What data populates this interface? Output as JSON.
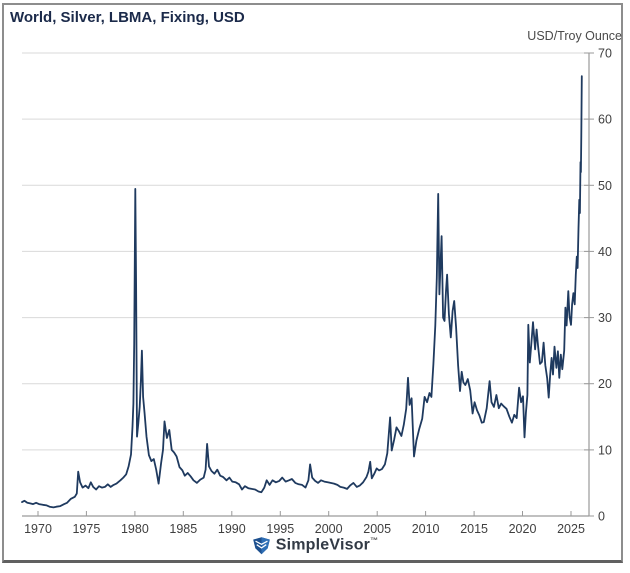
{
  "header": {
    "title": "World, Silver, LBMA, Fixing, USD",
    "unit_label": "USD/Troy Ounce"
  },
  "footer": {
    "brand": "SimpleVisor",
    "trademark": "™"
  },
  "colors": {
    "line": "#1f3a5f",
    "grid": "#d9d9d9",
    "axis": "#9a9a9a",
    "tick_text": "#3f3f3f",
    "title_text": "#1b2a4a",
    "logo_shield_dark": "#1c4f8e",
    "logo_shield_light": "#2f6fb5"
  },
  "chart_data": {
    "type": "line",
    "title": "World, Silver, LBMA, Fixing, USD",
    "xlabel": "",
    "ylabel": "USD/Troy Ounce",
    "xlim": [
      1968.35,
      2026.86
    ],
    "ylim": [
      0,
      70
    ],
    "x_ticks": [
      1970,
      1975,
      1980,
      1985,
      1990,
      1995,
      2000,
      2005,
      2010,
      2015,
      2020,
      2025
    ],
    "y_ticks": [
      0,
      10,
      20,
      30,
      40,
      50,
      60,
      70
    ],
    "grid": "horizontal-only",
    "legend": "none",
    "series": [
      {
        "name": "Silver LBMA Fixing (USD/Troy Ounce)",
        "points": [
          [
            1968.35,
            2.1
          ],
          [
            1968.6,
            2.3
          ],
          [
            1968.9,
            2.0
          ],
          [
            1969.2,
            1.9
          ],
          [
            1969.5,
            1.8
          ],
          [
            1969.8,
            2.0
          ],
          [
            1970.1,
            1.8
          ],
          [
            1970.5,
            1.7
          ],
          [
            1970.9,
            1.6
          ],
          [
            1971.2,
            1.4
          ],
          [
            1971.6,
            1.3
          ],
          [
            1971.9,
            1.4
          ],
          [
            1972.3,
            1.5
          ],
          [
            1972.7,
            1.8
          ],
          [
            1973.0,
            2.0
          ],
          [
            1973.4,
            2.6
          ],
          [
            1973.8,
            2.9
          ],
          [
            1974.0,
            3.4
          ],
          [
            1974.15,
            6.7
          ],
          [
            1974.35,
            5.1
          ],
          [
            1974.6,
            4.3
          ],
          [
            1974.9,
            4.6
          ],
          [
            1975.2,
            4.2
          ],
          [
            1975.45,
            5.1
          ],
          [
            1975.7,
            4.4
          ],
          [
            1976.0,
            4.0
          ],
          [
            1976.3,
            4.5
          ],
          [
            1976.6,
            4.3
          ],
          [
            1976.9,
            4.4
          ],
          [
            1977.2,
            4.8
          ],
          [
            1977.5,
            4.4
          ],
          [
            1977.8,
            4.7
          ],
          [
            1978.1,
            4.9
          ],
          [
            1978.5,
            5.4
          ],
          [
            1978.8,
            5.8
          ],
          [
            1979.1,
            6.3
          ],
          [
            1979.35,
            7.5
          ],
          [
            1979.6,
            9.3
          ],
          [
            1979.75,
            13.5
          ],
          [
            1979.85,
            17.0
          ],
          [
            1979.93,
            26.0
          ],
          [
            1980.04,
            49.45
          ],
          [
            1980.12,
            35.0
          ],
          [
            1980.22,
            12.0
          ],
          [
            1980.35,
            14.0
          ],
          [
            1980.5,
            16.5
          ],
          [
            1980.62,
            20.5
          ],
          [
            1980.72,
            25.0
          ],
          [
            1980.85,
            18.0
          ],
          [
            1981.0,
            15.5
          ],
          [
            1981.2,
            12.0
          ],
          [
            1981.45,
            9.2
          ],
          [
            1981.7,
            8.3
          ],
          [
            1981.95,
            8.6
          ],
          [
            1982.2,
            7.0
          ],
          [
            1982.45,
            4.9
          ],
          [
            1982.7,
            8.0
          ],
          [
            1982.9,
            10.0
          ],
          [
            1983.05,
            14.3
          ],
          [
            1983.3,
            11.8
          ],
          [
            1983.55,
            13.0
          ],
          [
            1983.8,
            10.0
          ],
          [
            1984.05,
            9.6
          ],
          [
            1984.3,
            9.0
          ],
          [
            1984.6,
            7.4
          ],
          [
            1984.9,
            6.9
          ],
          [
            1985.15,
            6.1
          ],
          [
            1985.45,
            6.5
          ],
          [
            1985.75,
            6.0
          ],
          [
            1986.05,
            5.4
          ],
          [
            1986.4,
            5.0
          ],
          [
            1986.75,
            5.5
          ],
          [
            1987.1,
            5.8
          ],
          [
            1987.3,
            7.0
          ],
          [
            1987.45,
            10.9
          ],
          [
            1987.65,
            7.5
          ],
          [
            1987.9,
            6.8
          ],
          [
            1988.2,
            6.4
          ],
          [
            1988.5,
            7.0
          ],
          [
            1988.8,
            6.1
          ],
          [
            1989.1,
            5.9
          ],
          [
            1989.45,
            5.4
          ],
          [
            1989.75,
            5.8
          ],
          [
            1990.05,
            5.2
          ],
          [
            1990.4,
            5.1
          ],
          [
            1990.75,
            4.8
          ],
          [
            1991.05,
            4.0
          ],
          [
            1991.35,
            4.5
          ],
          [
            1991.7,
            4.2
          ],
          [
            1992.05,
            4.1
          ],
          [
            1992.4,
            4.0
          ],
          [
            1992.75,
            3.7
          ],
          [
            1993.05,
            3.6
          ],
          [
            1993.35,
            4.3
          ],
          [
            1993.6,
            5.4
          ],
          [
            1993.9,
            4.7
          ],
          [
            1994.2,
            5.4
          ],
          [
            1994.55,
            5.1
          ],
          [
            1994.9,
            5.3
          ],
          [
            1995.2,
            5.8
          ],
          [
            1995.55,
            5.2
          ],
          [
            1995.9,
            5.4
          ],
          [
            1996.2,
            5.6
          ],
          [
            1996.55,
            5.0
          ],
          [
            1996.9,
            4.8
          ],
          [
            1997.25,
            4.7
          ],
          [
            1997.6,
            4.3
          ],
          [
            1997.9,
            5.4
          ],
          [
            1998.08,
            7.8
          ],
          [
            1998.3,
            5.8
          ],
          [
            1998.6,
            5.3
          ],
          [
            1998.9,
            5.0
          ],
          [
            1999.2,
            5.4
          ],
          [
            1999.55,
            5.2
          ],
          [
            1999.9,
            5.1
          ],
          [
            2000.2,
            5.0
          ],
          [
            2000.55,
            4.9
          ],
          [
            2000.9,
            4.7
          ],
          [
            2001.2,
            4.4
          ],
          [
            2001.55,
            4.3
          ],
          [
            2001.9,
            4.1
          ],
          [
            2002.2,
            4.6
          ],
          [
            2002.55,
            5.0
          ],
          [
            2002.9,
            4.4
          ],
          [
            2003.2,
            4.6
          ],
          [
            2003.55,
            5.1
          ],
          [
            2003.9,
            5.9
          ],
          [
            2004.1,
            6.7
          ],
          [
            2004.28,
            8.2
          ],
          [
            2004.45,
            5.7
          ],
          [
            2004.7,
            6.4
          ],
          [
            2004.95,
            7.2
          ],
          [
            2005.2,
            6.9
          ],
          [
            2005.5,
            7.1
          ],
          [
            2005.8,
            7.8
          ],
          [
            2006.05,
            9.5
          ],
          [
            2006.33,
            14.9
          ],
          [
            2006.5,
            9.9
          ],
          [
            2006.75,
            11.5
          ],
          [
            2007.0,
            13.4
          ],
          [
            2007.25,
            12.8
          ],
          [
            2007.5,
            12.1
          ],
          [
            2007.75,
            13.8
          ],
          [
            2008.0,
            16.2
          ],
          [
            2008.18,
            20.9
          ],
          [
            2008.35,
            16.8
          ],
          [
            2008.55,
            17.8
          ],
          [
            2008.8,
            9.0
          ],
          [
            2009.05,
            11.4
          ],
          [
            2009.35,
            13.2
          ],
          [
            2009.65,
            14.7
          ],
          [
            2009.9,
            18.0
          ],
          [
            2010.15,
            17.2
          ],
          [
            2010.4,
            18.6
          ],
          [
            2010.6,
            18.0
          ],
          [
            2010.8,
            23.0
          ],
          [
            2011.0,
            28.8
          ],
          [
            2011.15,
            36.0
          ],
          [
            2011.3,
            48.7
          ],
          [
            2011.42,
            33.5
          ],
          [
            2011.55,
            38.3
          ],
          [
            2011.65,
            42.3
          ],
          [
            2011.8,
            30.0
          ],
          [
            2011.95,
            29.5
          ],
          [
            2012.1,
            34.0
          ],
          [
            2012.22,
            36.5
          ],
          [
            2012.4,
            30.5
          ],
          [
            2012.6,
            27.0
          ],
          [
            2012.78,
            31.0
          ],
          [
            2012.95,
            32.5
          ],
          [
            2013.15,
            28.5
          ],
          [
            2013.35,
            22.8
          ],
          [
            2013.55,
            18.9
          ],
          [
            2013.72,
            21.8
          ],
          [
            2013.9,
            20.2
          ],
          [
            2014.1,
            19.8
          ],
          [
            2014.35,
            20.7
          ],
          [
            2014.6,
            19.0
          ],
          [
            2014.85,
            15.5
          ],
          [
            2015.05,
            17.2
          ],
          [
            2015.3,
            16.0
          ],
          [
            2015.55,
            15.2
          ],
          [
            2015.8,
            14.1
          ],
          [
            2016.0,
            14.2
          ],
          [
            2016.3,
            16.3
          ],
          [
            2016.6,
            20.4
          ],
          [
            2016.8,
            17.2
          ],
          [
            2017.05,
            16.5
          ],
          [
            2017.3,
            18.3
          ],
          [
            2017.55,
            16.3
          ],
          [
            2017.8,
            17.0
          ],
          [
            2018.05,
            16.6
          ],
          [
            2018.35,
            16.2
          ],
          [
            2018.65,
            15.0
          ],
          [
            2018.9,
            14.1
          ],
          [
            2019.15,
            15.3
          ],
          [
            2019.4,
            14.8
          ],
          [
            2019.65,
            19.4
          ],
          [
            2019.85,
            17.2
          ],
          [
            2020.05,
            18.1
          ],
          [
            2020.2,
            11.9
          ],
          [
            2020.35,
            15.6
          ],
          [
            2020.5,
            18.3
          ],
          [
            2020.6,
            28.9
          ],
          [
            2020.75,
            23.2
          ],
          [
            2020.9,
            25.8
          ],
          [
            2021.08,
            29.3
          ],
          [
            2021.3,
            25.2
          ],
          [
            2021.45,
            28.2
          ],
          [
            2021.6,
            25.8
          ],
          [
            2021.8,
            23.0
          ],
          [
            2022.0,
            23.3
          ],
          [
            2022.18,
            26.2
          ],
          [
            2022.35,
            22.8
          ],
          [
            2022.55,
            20.8
          ],
          [
            2022.7,
            17.9
          ],
          [
            2022.85,
            21.2
          ],
          [
            2023.0,
            23.9
          ],
          [
            2023.15,
            21.4
          ],
          [
            2023.3,
            25.6
          ],
          [
            2023.5,
            22.4
          ],
          [
            2023.65,
            24.9
          ],
          [
            2023.8,
            20.9
          ],
          [
            2023.95,
            24.4
          ],
          [
            2024.1,
            22.2
          ],
          [
            2024.3,
            25.0
          ],
          [
            2024.42,
            31.5
          ],
          [
            2024.55,
            28.8
          ],
          [
            2024.72,
            34.0
          ],
          [
            2024.85,
            30.2
          ],
          [
            2025.0,
            28.9
          ],
          [
            2025.12,
            32.0
          ],
          [
            2025.25,
            33.7
          ],
          [
            2025.38,
            32.0
          ],
          [
            2025.5,
            36.5
          ],
          [
            2025.6,
            39.2
          ],
          [
            2025.68,
            37.5
          ],
          [
            2025.78,
            43.5
          ],
          [
            2025.86,
            47.8
          ],
          [
            2025.92,
            45.8
          ],
          [
            2025.98,
            53.5
          ],
          [
            2026.02,
            52.0
          ],
          [
            2026.07,
            57.5
          ],
          [
            2026.12,
            66.5
          ]
        ]
      }
    ]
  }
}
